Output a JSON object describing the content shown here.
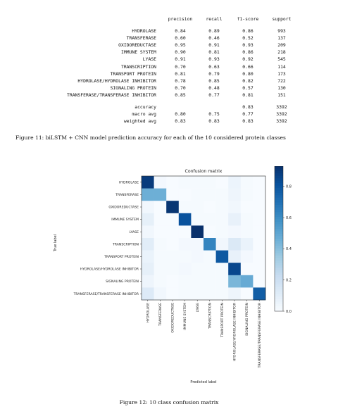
{
  "report": {
    "headers": [
      "precision",
      "recall",
      "f1-score",
      "support"
    ],
    "rows": [
      {
        "label": "HYDROLASE",
        "precision": "0.84",
        "recall": "0.89",
        "f1": "0.86",
        "support": "993"
      },
      {
        "label": "TRANSFERASE",
        "precision": "0.60",
        "recall": "0.46",
        "f1": "0.52",
        "support": "137"
      },
      {
        "label": "OXIDOREDUCTASE",
        "precision": "0.95",
        "recall": "0.91",
        "f1": "0.93",
        "support": "209"
      },
      {
        "label": "IMMUNE SYSTEM",
        "precision": "0.90",
        "recall": "0.81",
        "f1": "0.86",
        "support": "218"
      },
      {
        "label": "LYASE",
        "precision": "0.91",
        "recall": "0.93",
        "f1": "0.92",
        "support": "545"
      },
      {
        "label": "TRANSCRIPTION",
        "precision": "0.70",
        "recall": "0.63",
        "f1": "0.66",
        "support": "114"
      },
      {
        "label": "TRANSPORT PROTEIN",
        "precision": "0.81",
        "recall": "0.79",
        "f1": "0.80",
        "support": "173"
      },
      {
        "label": "HYDROLASE/HYDROLASE INHIBITOR",
        "precision": "0.78",
        "recall": "0.85",
        "f1": "0.82",
        "support": "722"
      },
      {
        "label": "SIGNALING PROTEIN",
        "precision": "0.70",
        "recall": "0.48",
        "f1": "0.57",
        "support": "130"
      },
      {
        "label": "TRANSFERASE/TRANSFERASE INHIBITOR",
        "precision": "0.85",
        "recall": "0.77",
        "f1": "0.81",
        "support": "151"
      }
    ],
    "summary": [
      {
        "label": "accuracy",
        "precision": "",
        "recall": "",
        "f1": "0.83",
        "support": "3392"
      },
      {
        "label": "macro avg",
        "precision": "0.80",
        "recall": "0.75",
        "f1": "0.77",
        "support": "3392"
      },
      {
        "label": "weighted avg",
        "precision": "0.83",
        "recall": "0.83",
        "f1": "0.83",
        "support": "3392"
      }
    ]
  },
  "captions": {
    "fig11": "Figure 11: biLSTM + CNN model prediction accuracy for each of the 10 considered protein classes",
    "fig12": "Figure 12: 10 class confusion matrix"
  },
  "chart_data": {
    "type": "heatmap",
    "title": "Confusion matrix",
    "xlabel": "Predicted label",
    "ylabel": "True label",
    "row_labels": [
      "HYDROLASE",
      "TRANSFERASE",
      "OXIDOREDUCTASE",
      "IMMUNE SYSTEM",
      "LYASE",
      "TRANSCRIPTION",
      "TRANSPORT PROTEIN",
      "HYDROLASE/HYDROLASE INHIBITOR",
      "SIGNALING PROTEIN",
      "TRANSFERASE/TRANSFERASE INHIBITOR"
    ],
    "col_labels": [
      "HYDROLASE",
      "TRANSFERASE",
      "OXIDOREDUCTASE",
      "IMMUNE SYSTEM",
      "LYASE",
      "TRANSCRIPTION",
      "TRANSPORT PROTEIN",
      "HYDROLASE/HYDROLASE INHIBITOR",
      "SIGNALING PROTEIN",
      "TRANSFERASE/TRANSFERASE INHIBITOR"
    ],
    "values": [
      [
        0.89,
        0.02,
        0.0,
        0.01,
        0.01,
        0.01,
        0.0,
        0.05,
        0.01,
        0.0
      ],
      [
        0.46,
        0.46,
        0.0,
        0.0,
        0.01,
        0.01,
        0.01,
        0.04,
        0.01,
        0.0
      ],
      [
        0.03,
        0.0,
        0.91,
        0.01,
        0.01,
        0.0,
        0.01,
        0.03,
        0.0,
        0.0
      ],
      [
        0.08,
        0.0,
        0.0,
        0.81,
        0.01,
        0.01,
        0.01,
        0.07,
        0.01,
        0.0
      ],
      [
        0.03,
        0.0,
        0.0,
        0.0,
        0.93,
        0.0,
        0.01,
        0.02,
        0.01,
        0.0
      ],
      [
        0.1,
        0.01,
        0.0,
        0.02,
        0.02,
        0.63,
        0.03,
        0.13,
        0.06,
        0.0
      ],
      [
        0.06,
        0.01,
        0.01,
        0.01,
        0.02,
        0.01,
        0.79,
        0.07,
        0.02,
        0.0
      ],
      [
        0.08,
        0.01,
        0.01,
        0.02,
        0.01,
        0.01,
        0.01,
        0.85,
        0.0,
        0.0
      ],
      [
        0.04,
        0.01,
        0.0,
        0.01,
        0.01,
        0.01,
        0.01,
        0.43,
        0.48,
        0.0
      ],
      [
        0.12,
        0.03,
        0.0,
        0.01,
        0.01,
        0.01,
        0.01,
        0.04,
        0.0,
        0.77
      ]
    ],
    "colorbar": {
      "min": 0.0,
      "max": 0.93,
      "ticks": [
        "0.0",
        "0.2",
        "0.4",
        "0.6",
        "0.8"
      ],
      "tick_values": [
        0.0,
        0.2,
        0.4,
        0.6,
        0.8
      ]
    },
    "colormap": "Blues",
    "colors": {
      "low": "#f7fbff",
      "high": "#08306b"
    }
  }
}
